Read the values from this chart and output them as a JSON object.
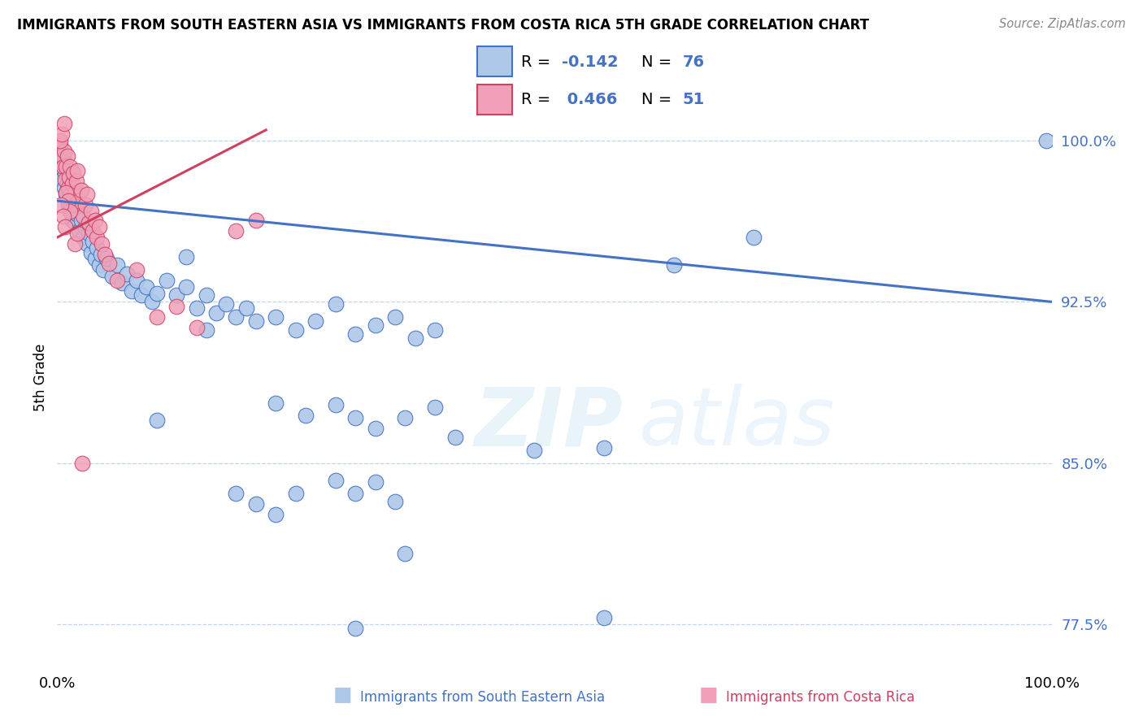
{
  "title": "IMMIGRANTS FROM SOUTH EASTERN ASIA VS IMMIGRANTS FROM COSTA RICA 5TH GRADE CORRELATION CHART",
  "source": "Source: ZipAtlas.com",
  "ylabel": "5th Grade",
  "color_blue": "#adc8e8",
  "color_pink": "#f0a0b8",
  "line_blue": "#4472c4",
  "line_pink": "#d04060",
  "x_range": [
    0.0,
    1.0
  ],
  "y_range": [
    0.755,
    1.025
  ],
  "ytick_positions": [
    0.775,
    0.85,
    0.925,
    1.0
  ],
  "ytick_labels": [
    "77.5%",
    "85.0%",
    "92.5%",
    "100.0%"
  ],
  "blue_line_x": [
    0.0,
    1.0
  ],
  "blue_line_y": [
    0.972,
    0.925
  ],
  "pink_line_x": [
    0.0,
    0.21
  ],
  "pink_line_y": [
    0.955,
    1.005
  ],
  "blue_scatter": [
    [
      0.003,
      0.988
    ],
    [
      0.005,
      0.982
    ],
    [
      0.006,
      0.993
    ],
    [
      0.007,
      0.978
    ],
    [
      0.008,
      0.985
    ],
    [
      0.009,
      0.975
    ],
    [
      0.01,
      0.98
    ],
    [
      0.011,
      0.97
    ],
    [
      0.012,
      0.976
    ],
    [
      0.013,
      0.968
    ],
    [
      0.014,
      0.972
    ],
    [
      0.015,
      0.963
    ],
    [
      0.016,
      0.968
    ],
    [
      0.017,
      0.974
    ],
    [
      0.018,
      0.962
    ],
    [
      0.019,
      0.966
    ],
    [
      0.02,
      0.971
    ],
    [
      0.022,
      0.958
    ],
    [
      0.024,
      0.963
    ],
    [
      0.026,
      0.955
    ],
    [
      0.028,
      0.96
    ],
    [
      0.03,
      0.952
    ],
    [
      0.032,
      0.957
    ],
    [
      0.034,
      0.948
    ],
    [
      0.036,
      0.953
    ],
    [
      0.038,
      0.945
    ],
    [
      0.04,
      0.95
    ],
    [
      0.042,
      0.942
    ],
    [
      0.044,
      0.947
    ],
    [
      0.046,
      0.94
    ],
    [
      0.05,
      0.945
    ],
    [
      0.055,
      0.937
    ],
    [
      0.06,
      0.942
    ],
    [
      0.065,
      0.934
    ],
    [
      0.07,
      0.938
    ],
    [
      0.075,
      0.93
    ],
    [
      0.08,
      0.935
    ],
    [
      0.085,
      0.928
    ],
    [
      0.09,
      0.932
    ],
    [
      0.095,
      0.925
    ],
    [
      0.1,
      0.929
    ],
    [
      0.11,
      0.935
    ],
    [
      0.12,
      0.928
    ],
    [
      0.13,
      0.932
    ],
    [
      0.14,
      0.922
    ],
    [
      0.15,
      0.928
    ],
    [
      0.16,
      0.92
    ],
    [
      0.17,
      0.924
    ],
    [
      0.18,
      0.918
    ],
    [
      0.19,
      0.922
    ],
    [
      0.2,
      0.916
    ],
    [
      0.22,
      0.918
    ],
    [
      0.24,
      0.912
    ],
    [
      0.26,
      0.916
    ],
    [
      0.28,
      0.924
    ],
    [
      0.3,
      0.91
    ],
    [
      0.32,
      0.914
    ],
    [
      0.34,
      0.918
    ],
    [
      0.36,
      0.908
    ],
    [
      0.38,
      0.912
    ],
    [
      0.22,
      0.878
    ],
    [
      0.25,
      0.872
    ],
    [
      0.28,
      0.877
    ],
    [
      0.3,
      0.871
    ],
    [
      0.32,
      0.866
    ],
    [
      0.35,
      0.871
    ],
    [
      0.38,
      0.876
    ],
    [
      0.4,
      0.862
    ],
    [
      0.28,
      0.842
    ],
    [
      0.3,
      0.836
    ],
    [
      0.32,
      0.841
    ],
    [
      0.34,
      0.832
    ],
    [
      0.18,
      0.836
    ],
    [
      0.2,
      0.831
    ],
    [
      0.22,
      0.826
    ],
    [
      0.24,
      0.836
    ],
    [
      0.35,
      0.808
    ],
    [
      0.55,
      0.857
    ],
    [
      0.55,
      0.778
    ],
    [
      0.3,
      0.773
    ],
    [
      0.62,
      0.942
    ],
    [
      0.7,
      0.955
    ],
    [
      0.995,
      1.0
    ],
    [
      0.15,
      0.912
    ],
    [
      0.13,
      0.946
    ],
    [
      0.1,
      0.87
    ],
    [
      0.48,
      0.856
    ]
  ],
  "pink_scatter": [
    [
      0.003,
      0.998
    ],
    [
      0.005,
      0.993
    ],
    [
      0.006,
      0.988
    ],
    [
      0.007,
      0.995
    ],
    [
      0.008,
      0.982
    ],
    [
      0.009,
      0.988
    ],
    [
      0.01,
      0.993
    ],
    [
      0.011,
      0.978
    ],
    [
      0.012,
      0.983
    ],
    [
      0.013,
      0.988
    ],
    [
      0.014,
      0.975
    ],
    [
      0.015,
      0.98
    ],
    [
      0.016,
      0.985
    ],
    [
      0.017,
      0.97
    ],
    [
      0.018,
      0.976
    ],
    [
      0.019,
      0.981
    ],
    [
      0.02,
      0.986
    ],
    [
      0.022,
      0.972
    ],
    [
      0.024,
      0.977
    ],
    [
      0.026,
      0.965
    ],
    [
      0.028,
      0.97
    ],
    [
      0.03,
      0.975
    ],
    [
      0.032,
      0.962
    ],
    [
      0.034,
      0.967
    ],
    [
      0.036,
      0.958
    ],
    [
      0.038,
      0.963
    ],
    [
      0.04,
      0.955
    ],
    [
      0.042,
      0.96
    ],
    [
      0.045,
      0.952
    ],
    [
      0.048,
      0.947
    ],
    [
      0.052,
      0.943
    ],
    [
      0.003,
      1.0
    ],
    [
      0.005,
      1.003
    ],
    [
      0.007,
      1.008
    ],
    [
      0.009,
      0.976
    ],
    [
      0.011,
      0.972
    ],
    [
      0.013,
      0.967
    ],
    [
      0.004,
      0.97
    ],
    [
      0.006,
      0.965
    ],
    [
      0.008,
      0.96
    ],
    [
      0.018,
      0.952
    ],
    [
      0.02,
      0.957
    ],
    [
      0.06,
      0.935
    ],
    [
      0.08,
      0.94
    ],
    [
      0.1,
      0.918
    ],
    [
      0.12,
      0.923
    ],
    [
      0.14,
      0.913
    ],
    [
      0.025,
      0.85
    ],
    [
      0.18,
      0.958
    ],
    [
      0.2,
      0.963
    ]
  ]
}
